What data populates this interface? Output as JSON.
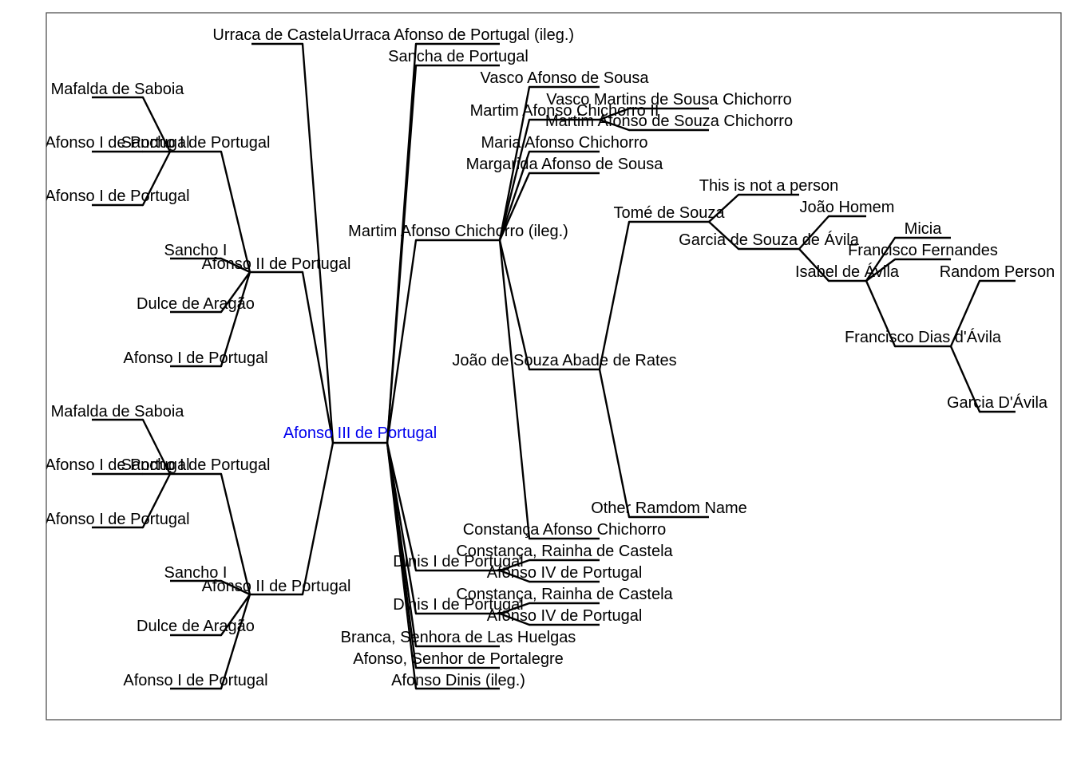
{
  "accent_colors": {
    "root_label": "#0000ee",
    "lines": "#000000",
    "frame": "#444444"
  },
  "tree": {
    "root": "Afonso III de Portugal",
    "ancestors": {
      "pat_grandmother": "Urraca de Castela",
      "pat_father_top": "Sancho I de Portugal",
      "pat_father_top_parents": [
        "Mafalda de Saboia",
        "Afonso I de Portugal",
        "Afonso I de Portugal"
      ],
      "father_1": "Afonso II de Portugal",
      "father_1_parents": [
        "Sancho I",
        "Dulce de Aragão",
        "Afonso I de Portugal"
      ],
      "pat_father_bottom": "Sancho I de Portugal",
      "pat_father_bottom_parents": [
        "Mafalda de Saboia",
        "Afonso I de Portugal",
        "Afonso I de Portugal"
      ],
      "father_2": "Afonso II de Portugal",
      "father_2_parents": [
        "Sancho I",
        "Dulce de Aragão",
        "Afonso I de Portugal"
      ]
    },
    "descendants": {
      "urraca_afonso": "Urraca Afonso de Portugal (ileg.)",
      "sancha": "Sancha de Portugal",
      "martim_afonso": "Martim Afonso Chichorro (ileg.)",
      "martim_children": [
        "Vasco Afonso de Sousa",
        "Martim Afonso Chichorro II",
        "Maria Afonso Chichorro",
        "Margarida Afonso de Sousa",
        "João de Souza Abade de Rates",
        "Constança Afonso Chichorro"
      ],
      "martim_ii_children": [
        "Vasco Martins de Sousa Chichorro",
        "Martim Afonso de Souza Chichorro"
      ],
      "joao_children": [
        "Tomé de Souza",
        "Other Ramdom Name"
      ],
      "tome_children": [
        "This is not a person",
        "Garcia de Souza de Ávila"
      ],
      "garcia_children": [
        "João Homem",
        "Isabel de Ávila"
      ],
      "isabel_children": [
        "Micia",
        "Francisco Fernandes",
        "Francisco Dias d'Ávila"
      ],
      "francisco_dias_children": [
        "Random Person",
        "Garcia D'Ávila"
      ],
      "dinis_1": "Dinis I de Portugal",
      "dinis_1_children": [
        "Constança, Rainha de Castela",
        "Afonso IV de Portugal"
      ],
      "dinis_2": "Dinis I de Portugal",
      "dinis_2_children": [
        "Constança, Rainha de Castela",
        "Afonso IV de Portugal"
      ],
      "branca": "Branca, Senhora de Las Huelgas",
      "afonso_portalegre": "Afonso, Senhor de Portalegre",
      "afonso_dinis": "Afonso Dinis (ileg.)"
    }
  }
}
